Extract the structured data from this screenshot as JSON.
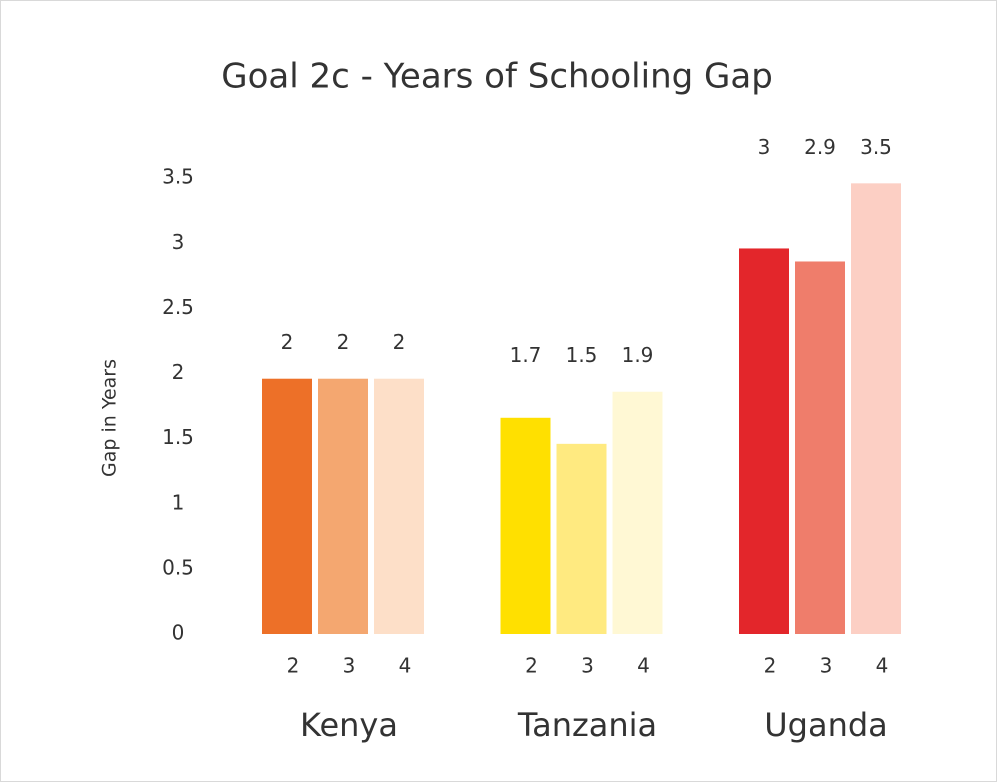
{
  "chart_data": {
    "type": "bar",
    "title": "Goal 2c - Years of Schooling Gap",
    "y_label": "Gap in Years",
    "categories": [
      "Kenya",
      "Tanzania",
      "Uganda"
    ],
    "series": [
      {
        "name": "2",
        "colors": [
          "#ed7028",
          "#ffe000",
          "#e3262b"
        ],
        "values": [
          1.96,
          1.66,
          2.96
        ],
        "value_labels": [
          "2",
          "1.7",
          "3"
        ]
      },
      {
        "name": "3",
        "colors": [
          "#f4a770",
          "#ffea80",
          "#ef7d6b"
        ],
        "values": [
          1.96,
          1.46,
          2.86
        ],
        "value_labels": [
          "2",
          "1.5",
          "2.9"
        ]
      },
      {
        "name": "4",
        "colors": [
          "#fddfc8",
          "#fff8d4",
          "#fccfc4"
        ],
        "values": [
          1.96,
          1.86,
          3.46
        ],
        "value_labels": [
          "2",
          "1.9",
          "3.5"
        ]
      }
    ],
    "ylim": [
      0,
      4
    ],
    "yticks": [
      0,
      0.5,
      1,
      1.5,
      2,
      2.5,
      3,
      3.5
    ],
    "grid": false
  }
}
